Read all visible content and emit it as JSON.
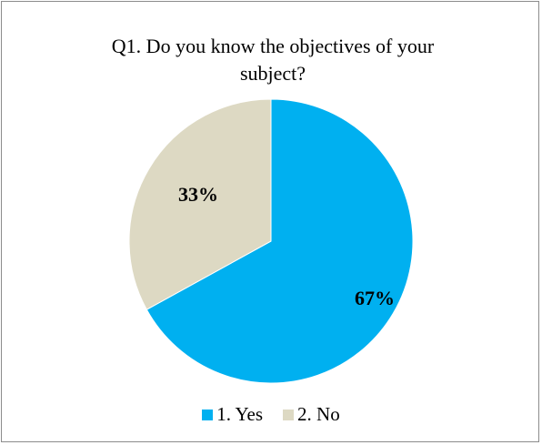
{
  "chart_data": {
    "type": "pie",
    "title": "Q1. Do you know the objectives of your\nsubject?",
    "categories": [
      "1. Yes",
      "2. No"
    ],
    "values": [
      67,
      33
    ],
    "data_labels": [
      "67%",
      "33%"
    ],
    "colors": [
      "#00b0f0",
      "#ddd9c3"
    ],
    "legend_position": "bottom"
  }
}
